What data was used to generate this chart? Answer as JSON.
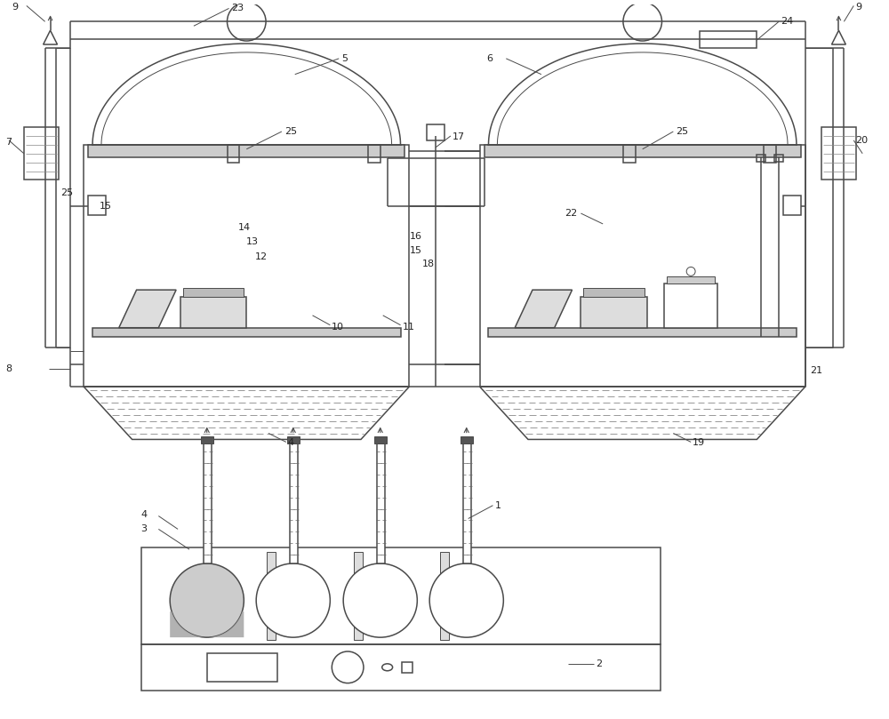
{
  "background_color": "#ffffff",
  "line_color": "#4a4a4a",
  "fig_width": 10.0,
  "fig_height": 8.09,
  "lw_main": 1.1,
  "lw_thin": 0.7,
  "fs_label": 8.0
}
